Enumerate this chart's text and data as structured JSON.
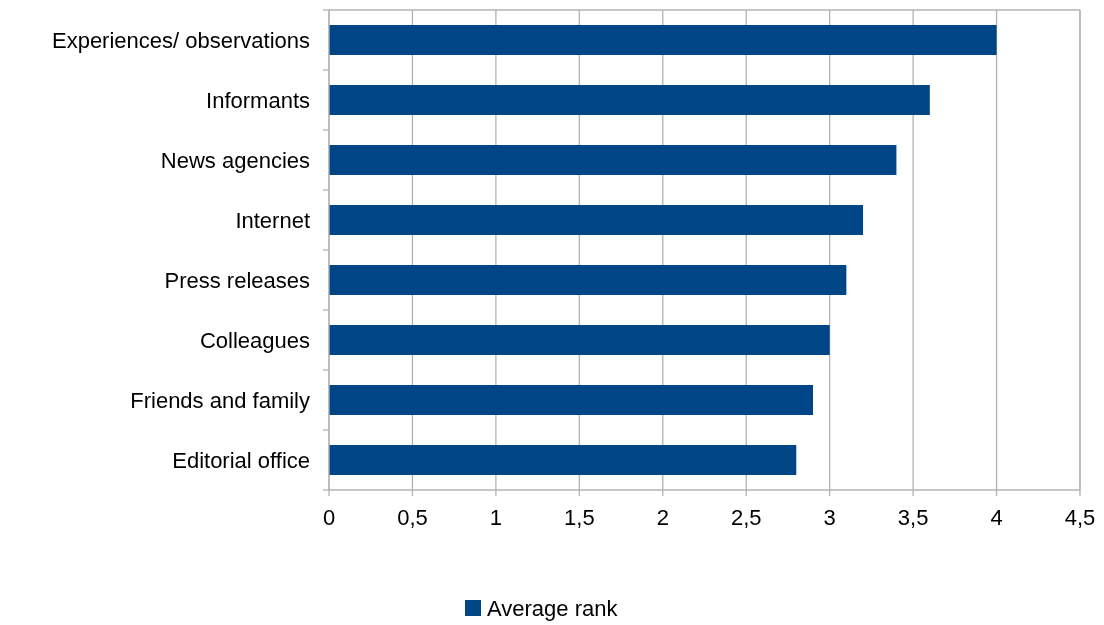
{
  "chart_data": {
    "type": "bar",
    "orientation": "horizontal",
    "categories": [
      "Experiences/ observations",
      "Informants",
      "News agencies",
      "Internet",
      "Press releases",
      "Colleagues",
      "Friends and family",
      "Editorial office"
    ],
    "series": [
      {
        "name": "Average rank",
        "color": "#004586",
        "values": [
          4,
          3.6,
          3.4,
          3.2,
          3.1,
          3.0,
          2.9,
          2.8
        ]
      }
    ],
    "xlim": [
      0,
      4.5
    ],
    "xticks": [
      0,
      {
        "value": 0.5,
        "label": "0,5"
      },
      1,
      {
        "value": 1.5,
        "label": "1,5"
      },
      2,
      {
        "value": 2.5,
        "label": "2,5"
      },
      3,
      {
        "value": 3.5,
        "label": "3,5"
      },
      4,
      {
        "value": 4.5,
        "label": "4,5"
      }
    ],
    "grid": "x",
    "legend": "bottom"
  }
}
